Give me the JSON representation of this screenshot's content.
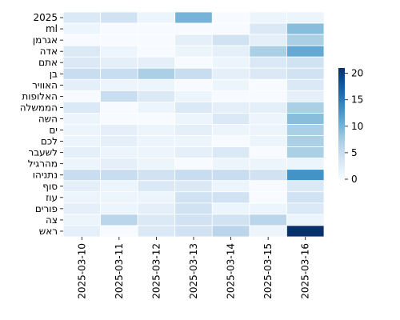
{
  "chart_data": {
    "type": "heatmap",
    "x": [
      "2025-03-10",
      "2025-03-11",
      "2025-03-12",
      "2025-03-13",
      "2025-03-14",
      "2025-03-15",
      "2025-03-16"
    ],
    "y": [
      "2025",
      "ml",
      "אגרמן",
      "אדה",
      "אתם",
      "בן",
      "האוויר",
      "האלופות",
      "הממשלה",
      "השה",
      "ים",
      "לכם",
      "לשעבר",
      "מהרגיל",
      "נתניהו",
      "סוף",
      "עוז",
      "פורים",
      "צה",
      "ראש"
    ],
    "values": [
      [
        3,
        4,
        1,
        10,
        0,
        1,
        1
      ],
      [
        1,
        0,
        0,
        0,
        0,
        3,
        9
      ],
      [
        0,
        0,
        0,
        2,
        4,
        2,
        7
      ],
      [
        3,
        1,
        0,
        1,
        2,
        7,
        11
      ],
      [
        3,
        2,
        2,
        0,
        1,
        3,
        4
      ],
      [
        5,
        5,
        7,
        5,
        2,
        3,
        4
      ],
      [
        2,
        1,
        1,
        0,
        1,
        0,
        3
      ],
      [
        0,
        5,
        3,
        1,
        0,
        0,
        2
      ],
      [
        3,
        0,
        1,
        3,
        2,
        2,
        7
      ],
      [
        1,
        0,
        0,
        1,
        3,
        1,
        9
      ],
      [
        1,
        2,
        1,
        2,
        1,
        1,
        7
      ],
      [
        1,
        2,
        1,
        1,
        0,
        1,
        7
      ],
      [
        2,
        1,
        1,
        2,
        3,
        0,
        7
      ],
      [
        1,
        2,
        1,
        0,
        1,
        1,
        1
      ],
      [
        5,
        5,
        4,
        5,
        5,
        4,
        13
      ],
      [
        2,
        1,
        3,
        3,
        1,
        0,
        3
      ],
      [
        1,
        1,
        1,
        4,
        4,
        0,
        4
      ],
      [
        2,
        1,
        2,
        4,
        1,
        1,
        3
      ],
      [
        1,
        6,
        3,
        4,
        4,
        6,
        1
      ],
      [
        2,
        0,
        3,
        4,
        6,
        1,
        21
      ]
    ],
    "colorbar": {
      "min": 0,
      "max": 21,
      "ticks": [
        0,
        5,
        10,
        15,
        20
      ]
    },
    "colormap": {
      "low": "#f7fbff",
      "mid": "#6baed6",
      "high": "#08306b"
    },
    "grid_color": "#ffffff"
  }
}
